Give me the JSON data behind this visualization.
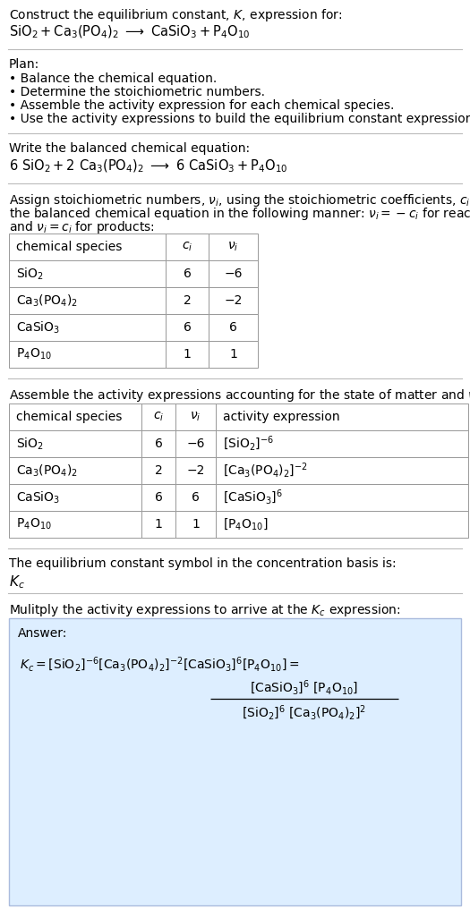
{
  "title_line1": "Construct the equilibrium constant, ",
  "title_K": "K",
  "title_line2": ", expression for:",
  "plan_header": "Plan:",
  "plan_items": [
    "• Balance the chemical equation.",
    "• Determine the stoichiometric numbers.",
    "• Assemble the activity expression for each chemical species.",
    "• Use the activity expressions to build the equilibrium constant expression."
  ],
  "balanced_header": "Write the balanced chemical equation:",
  "table1_cols": [
    "chemical species",
    "c_i",
    "ν_i"
  ],
  "table1_data": [
    [
      "SiO_2",
      "6",
      "−6"
    ],
    [
      "Ca_3(PO_4)_2",
      "2",
      "−2"
    ],
    [
      "CaSiO_3",
      "6",
      "6"
    ],
    [
      "P_4O_{10}",
      "1",
      "1"
    ]
  ],
  "table2_cols": [
    "chemical species",
    "c_i",
    "ν_i",
    "activity expression"
  ],
  "table2_data": [
    [
      "SiO_2",
      "6",
      "−6",
      "[SiO_2]^{-6}"
    ],
    [
      "Ca_3(PO_4)_2",
      "2",
      "−2",
      "[Ca_3(PO_4)_2]^{-2}"
    ],
    [
      "CaSiO_3",
      "6",
      "6",
      "[CaSiO_3]^6"
    ],
    [
      "P_4O_{10}",
      "1",
      "1",
      "[P_4O_{10}]"
    ]
  ],
  "bg_color": "#ffffff",
  "table_border_color": "#999999",
  "answer_box_color": "#ddeeff",
  "answer_box_border": "#aabbdd",
  "text_color": "#000000",
  "font_size": 10.0
}
